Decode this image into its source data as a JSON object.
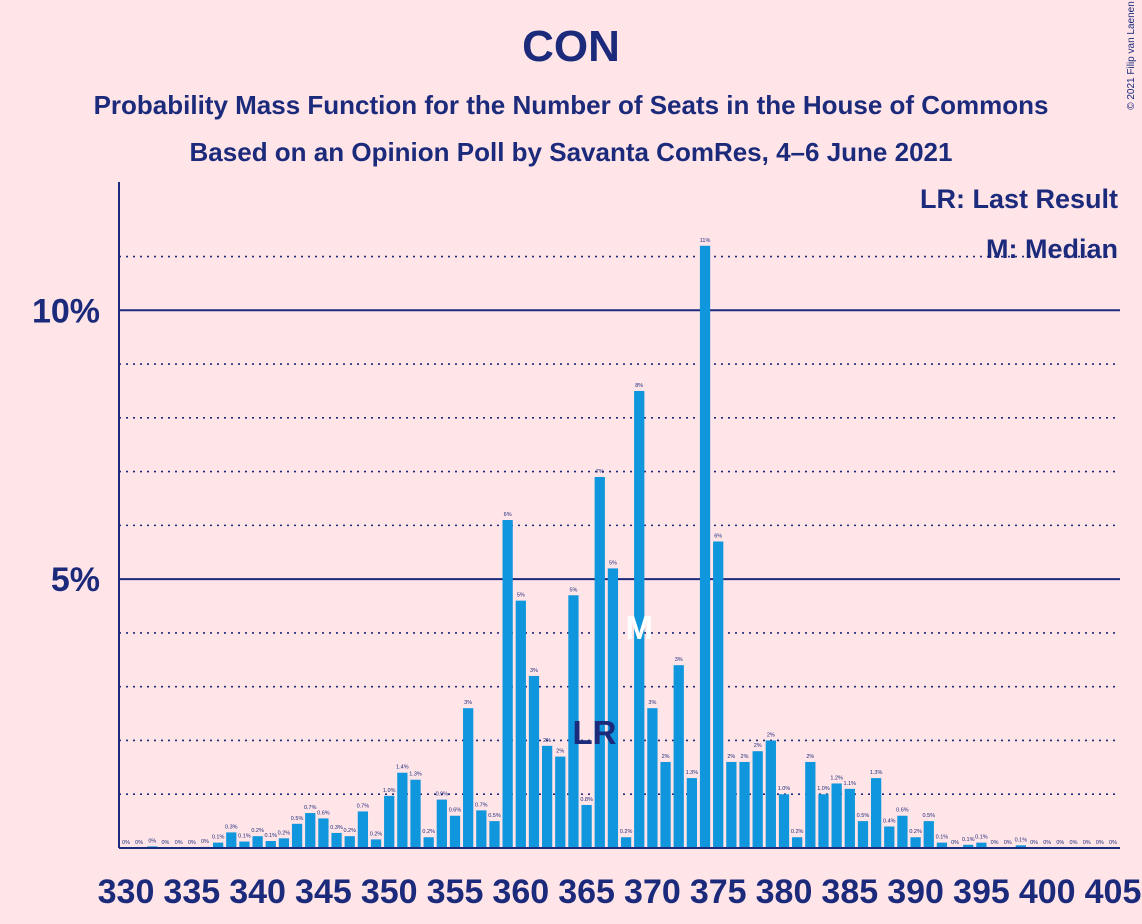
{
  "title": "CON",
  "subtitle": "Probability Mass Function for the Number of Seats in the House of Commons",
  "subtitle2": "Based on an Opinion Poll by Savanta ComRes, 4–6 June 2021",
  "copyright": "© 2021 Filip van Laenen",
  "legend": {
    "lr": "LR: Last Result",
    "m": "M: Median"
  },
  "markers": {
    "last_result_label": "LR",
    "median_label": "M"
  },
  "colors": {
    "background": "#FFE4E8",
    "bar": "#0F96DC",
    "text": "#1B2A7A"
  },
  "chart_data": {
    "type": "bar",
    "x": [
      330,
      331,
      332,
      333,
      334,
      335,
      336,
      337,
      338,
      339,
      340,
      341,
      342,
      343,
      344,
      345,
      346,
      347,
      348,
      349,
      350,
      351,
      352,
      353,
      354,
      355,
      356,
      357,
      358,
      359,
      360,
      361,
      362,
      363,
      364,
      365,
      366,
      367,
      368,
      369,
      370,
      371,
      372,
      373,
      374,
      375,
      376,
      377,
      378,
      379,
      380,
      381,
      382,
      383,
      384,
      385,
      386,
      387,
      388,
      389,
      390,
      391,
      392,
      393,
      394,
      395,
      396,
      397,
      398,
      399,
      400,
      401,
      402,
      403,
      404,
      405
    ],
    "values": [
      0.0,
      0.0,
      0.03,
      0.0,
      0.0,
      0.0,
      0.02,
      0.1,
      0.29,
      0.12,
      0.22,
      0.13,
      0.18,
      0.45,
      0.65,
      0.55,
      0.28,
      0.22,
      0.68,
      0.16,
      0.97,
      1.4,
      1.27,
      0.2,
      0.9,
      0.6,
      2.6,
      0.7,
      0.5,
      6.1,
      4.6,
      3.2,
      1.9,
      1.7,
      4.7,
      0.8,
      6.9,
      5.2,
      0.2,
      8.5,
      2.6,
      1.6,
      3.4,
      1.3,
      11.2,
      5.7,
      1.6,
      1.6,
      1.8,
      2.0,
      1.0,
      0.2,
      1.6,
      1.0,
      1.2,
      1.1,
      0.5,
      1.3,
      0.4,
      0.6,
      0.2,
      0.5,
      0.1,
      0.0,
      0.06,
      0.1,
      0.0,
      0.0,
      0.05,
      0.0,
      0.0,
      0.0,
      0.0,
      0.0,
      0.0,
      0.0
    ],
    "data_labels": [
      "0%",
      "0%",
      "0%",
      "0%",
      "0%",
      "0%",
      "0%",
      "0.1%",
      "0.3%",
      "0.1%",
      "0.2%",
      "0.1%",
      "0.2%",
      "0.5%",
      "0.7%",
      "0.6%",
      "0.3%",
      "0.2%",
      "0.7%",
      "0.2%",
      "1.0%",
      "1.4%",
      "1.3%",
      "0.2%",
      "0.9%",
      "0.6%",
      "3%",
      "0.7%",
      "0.5%",
      "6%",
      "5%",
      "3%",
      "2%",
      "2%",
      "5%",
      "0.8%",
      "7%",
      "5%",
      "0.2%",
      "8%",
      "3%",
      "2%",
      "3%",
      "1.3%",
      "11%",
      "6%",
      "2%",
      "2%",
      "2%",
      "2%",
      "1.0%",
      "0.2%",
      "2%",
      "1.0%",
      "1.2%",
      "1.1%",
      "0.5%",
      "1.3%",
      "0.4%",
      "0.6%",
      "0.2%",
      "0.5%",
      "0.1%",
      "0%",
      "0.1%",
      "0.1%",
      "0%",
      "0%",
      "0.1%",
      "0%",
      "0%",
      "0%",
      "0%",
      "0%",
      "0%",
      "0%"
    ],
    "xticks": [
      330,
      335,
      340,
      345,
      350,
      355,
      360,
      365,
      370,
      375,
      380,
      385,
      390,
      395,
      400,
      405
    ],
    "xtick_labels": [
      "330",
      "335",
      "340",
      "345",
      "350",
      "355",
      "360",
      "365",
      "370",
      "375",
      "380",
      "385",
      "390",
      "395",
      "400",
      "405"
    ],
    "yticks_major": [
      5,
      10
    ],
    "ytick_labels": [
      "5%",
      "10%"
    ],
    "yticks_minor": [
      1,
      2,
      3,
      4,
      6,
      7,
      8,
      9,
      11
    ],
    "ylim": [
      0,
      12.2
    ],
    "last_result_x": 365,
    "median_x": 369
  }
}
